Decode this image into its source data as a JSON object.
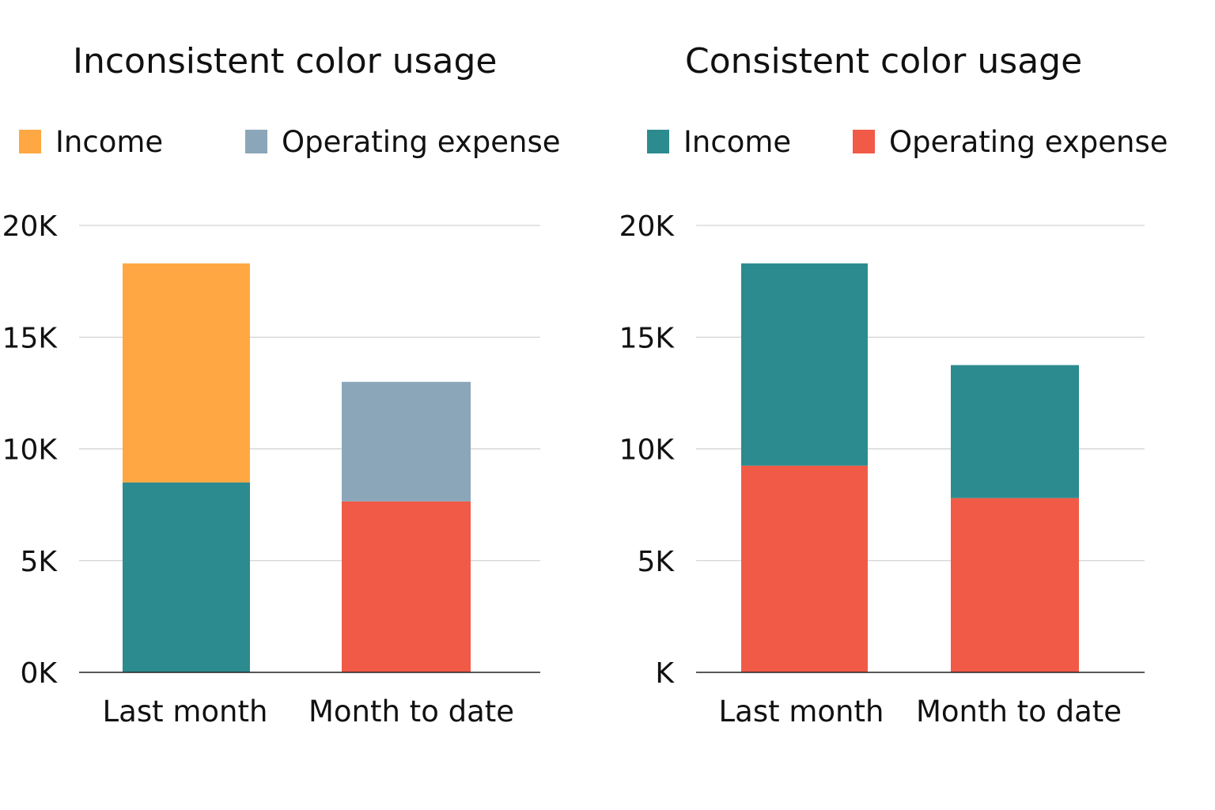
{
  "chart_data": [
    {
      "type": "bar",
      "title": "Inconsistent color usage",
      "legend": [
        {
          "label": "Income",
          "color": "#FFA843"
        },
        {
          "label": "Operating expense",
          "color": "#8BA6B8"
        }
      ],
      "yticks": [
        "0K",
        "5K",
        "10K",
        "15K",
        "20K"
      ],
      "ylim": [
        0,
        20000
      ],
      "categories": [
        "Last month",
        "Month to date"
      ],
      "stacks": [
        [
          {
            "value": 8500,
            "color": "#2C8B8F"
          },
          {
            "value": 9800,
            "color": "#FFA843"
          }
        ],
        [
          {
            "value": 7650,
            "color": "#F05A47"
          },
          {
            "value": 5350,
            "color": "#8BA6B8"
          }
        ]
      ],
      "grid": true,
      "legend_position": "top"
    },
    {
      "type": "bar",
      "title": "Consistent color usage",
      "legend": [
        {
          "label": "Income",
          "color": "#2C8B8F"
        },
        {
          "label": "Operating expense",
          "color": "#F05A47"
        }
      ],
      "yticks": [
        "K",
        "5K",
        "10K",
        "15K",
        "20K"
      ],
      "ylim": [
        0,
        20000
      ],
      "categories": [
        "Last month",
        "Month to date"
      ],
      "stacks": [
        [
          {
            "value": 9250,
            "color": "#F05A47"
          },
          {
            "value": 9050,
            "color": "#2C8B8F"
          }
        ],
        [
          {
            "value": 7800,
            "color": "#F05A47"
          },
          {
            "value": 5950,
            "color": "#2C8B8F"
          }
        ]
      ],
      "grid": true,
      "legend_position": "top"
    }
  ]
}
